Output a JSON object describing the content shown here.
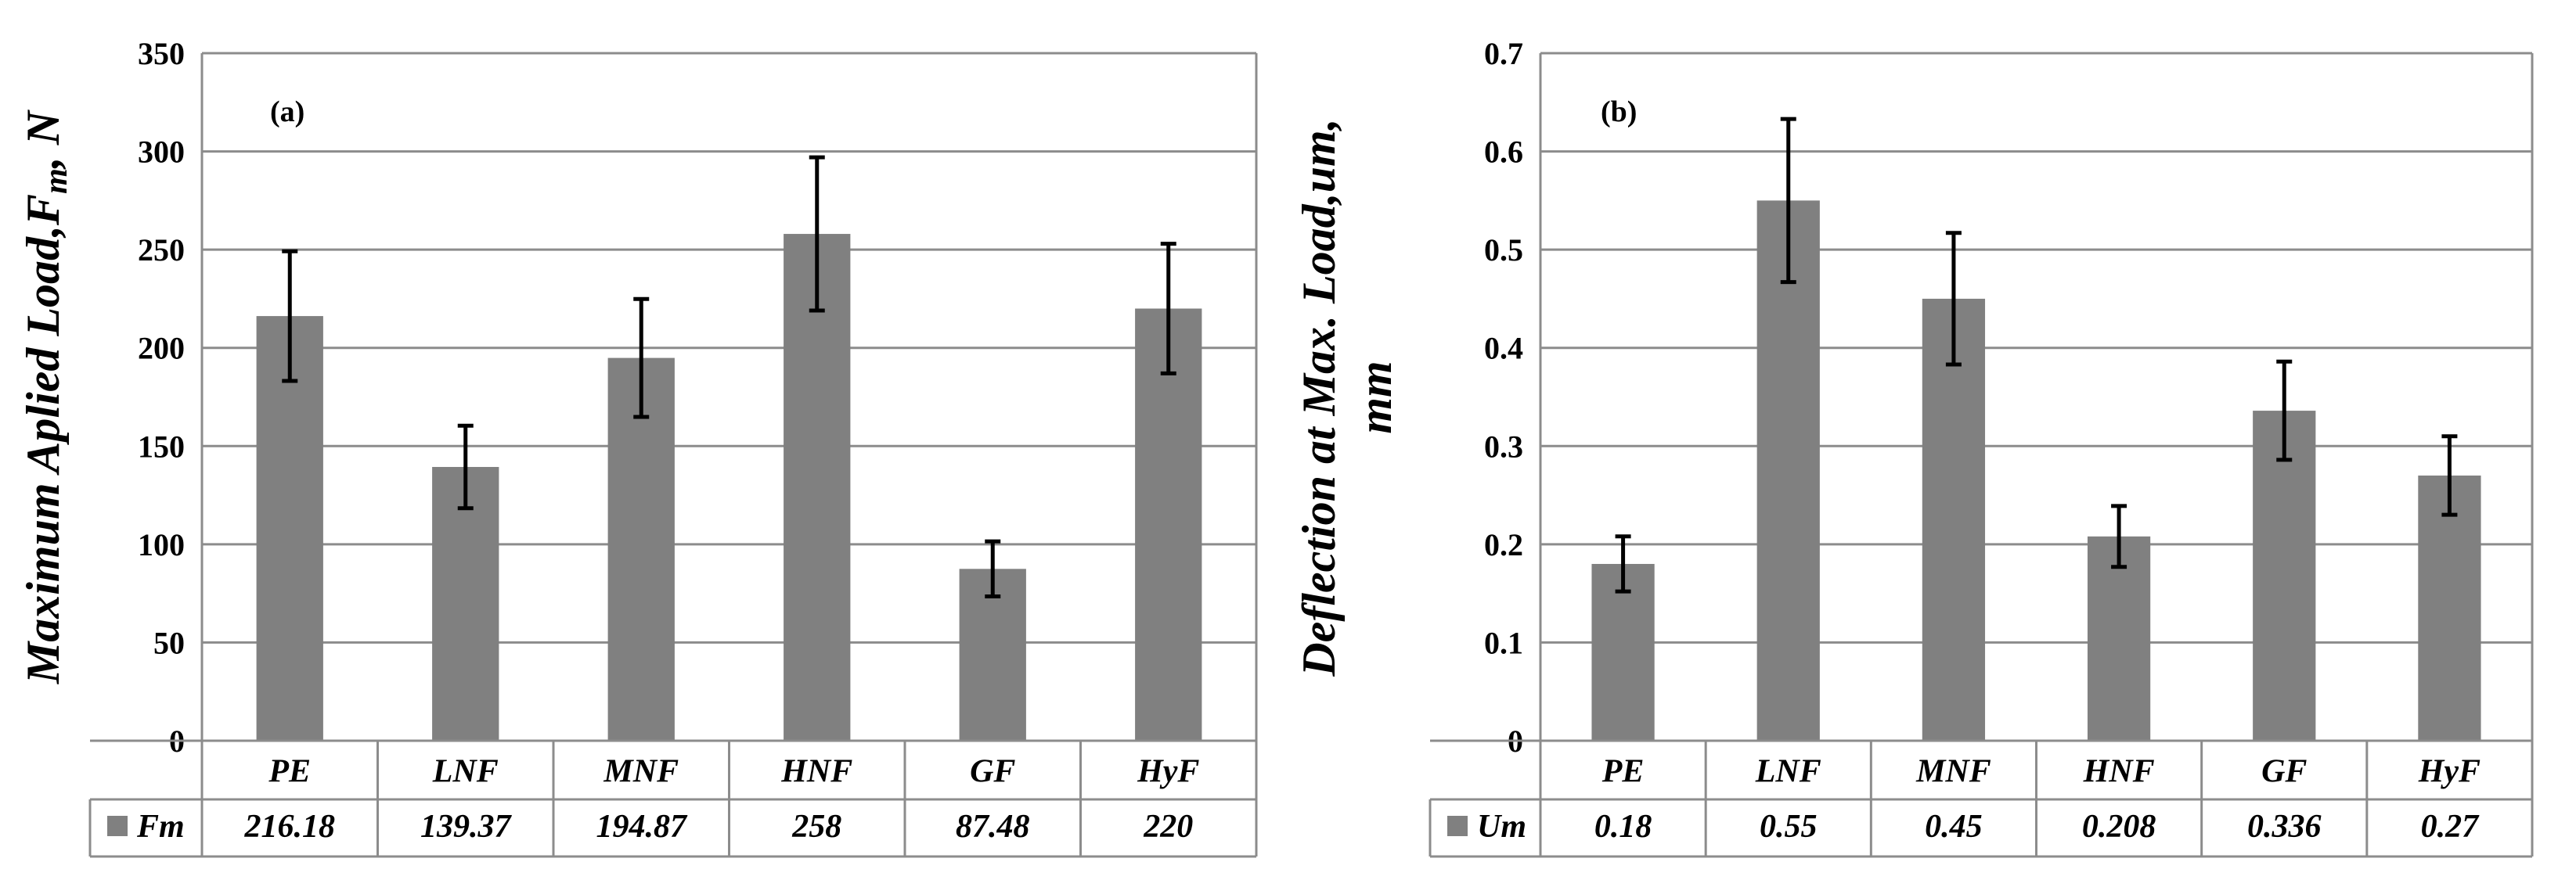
{
  "colors": {
    "bar": "#808080",
    "grid": "#8c8c8c",
    "axis": "#8c8c8c",
    "text": "#000000"
  },
  "chart_data": [
    {
      "type": "bar",
      "panel_label": "(a)",
      "ylabel": "Maximum Aplied Load,Fm, N",
      "ylabel_parts": [
        "Maximum Aplied Load,F",
        "m",
        ", N"
      ],
      "ylim": [
        0,
        350
      ],
      "yticks": [
        0,
        50,
        100,
        150,
        200,
        250,
        300,
        350
      ],
      "ytick_labels": [
        "0",
        "50",
        "100",
        "150",
        "200",
        "250",
        "300",
        "350"
      ],
      "categories": [
        "PE",
        "LNF",
        "MNF",
        "HNF",
        "GF",
        "HyF"
      ],
      "series": [
        {
          "name": "Fm",
          "values": [
            216.18,
            139.37,
            194.87,
            258,
            87.48,
            220
          ],
          "errors": [
            33,
            21,
            30,
            39,
            14,
            33
          ]
        }
      ],
      "table_values": [
        "216.18",
        "139.37",
        "194.87",
        "258",
        "87.48",
        "220"
      ]
    },
    {
      "type": "bar",
      "panel_label": "(b)",
      "ylabel": "Deflection at Max. Load,um, mm",
      "ylabel_lines": [
        "Deflection at Max. Load,um,",
        "mm"
      ],
      "ylim": [
        0,
        0.7
      ],
      "yticks": [
        0,
        0.1,
        0.2,
        0.3,
        0.4,
        0.5,
        0.6,
        0.7
      ],
      "ytick_labels": [
        "0",
        "0.1",
        "0.2",
        "0.3",
        "0.4",
        "0.5",
        "0.6",
        "0.7"
      ],
      "categories": [
        "PE",
        "LNF",
        "MNF",
        "HNF",
        "GF",
        "HyF"
      ],
      "series": [
        {
          "name": "Um",
          "values": [
            0.18,
            0.55,
            0.45,
            0.208,
            0.336,
            0.27
          ],
          "errors": [
            0.028,
            0.083,
            0.067,
            0.031,
            0.05,
            0.04
          ]
        }
      ],
      "table_values": [
        "0.18",
        "0.55",
        "0.45",
        "0.208",
        "0.336",
        "0.27"
      ]
    }
  ]
}
